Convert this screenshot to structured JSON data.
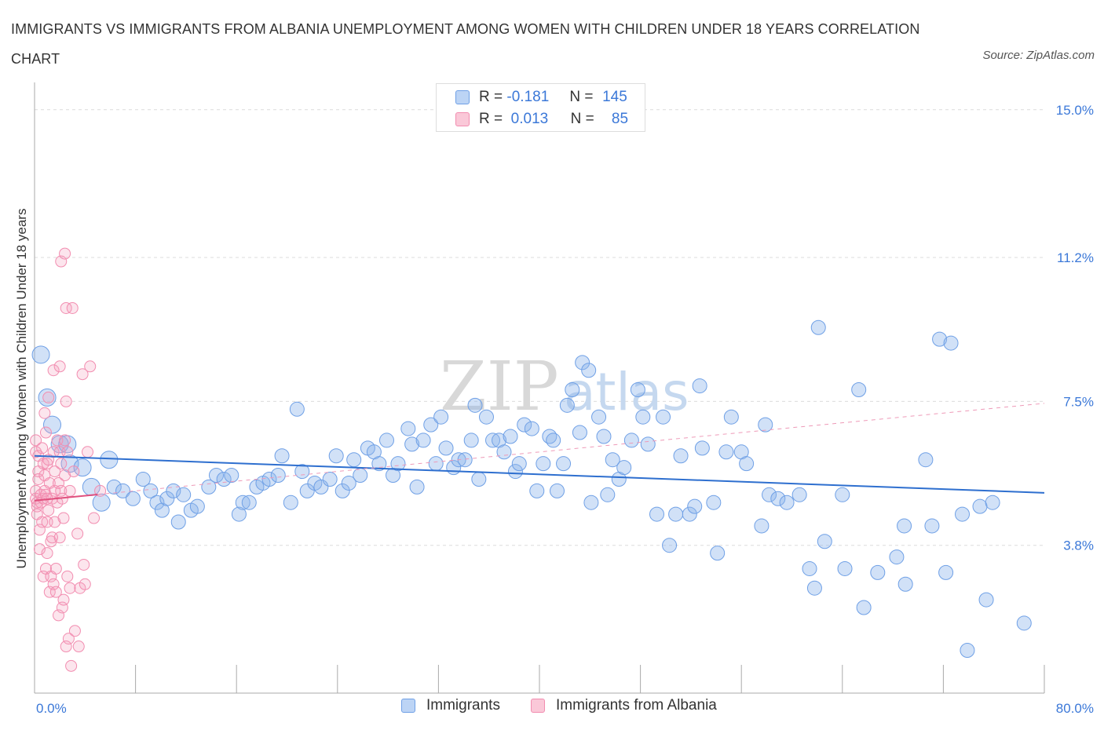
{
  "title": "IMMIGRANTS VS IMMIGRANTS FROM ALBANIA UNEMPLOYMENT AMONG WOMEN WITH CHILDREN UNDER 18 YEARS CORRELATION CHART",
  "source": "Source: ZipAtlas.com",
  "watermark": {
    "zip": "ZIP",
    "atlas": "atlas"
  },
  "legend": {
    "r_label": "R =",
    "n_label": "N =",
    "rows": [
      {
        "r": "-0.181",
        "n": "145"
      },
      {
        "r": "0.013",
        "n": "85"
      }
    ]
  },
  "chart_data": {
    "type": "scatter",
    "xlabel": "",
    "ylabel": "Unemployment Among Women with Children Under 18 years",
    "xlim": [
      0,
      80
    ],
    "ylim": [
      0,
      15.5
    ],
    "x_tick_labels": [
      "0.0%",
      "80.0%"
    ],
    "y_ticks": [
      3.8,
      7.5,
      11.2,
      15.0
    ],
    "y_tick_labels": [
      "3.8%",
      "7.5%",
      "11.2%",
      "15.0%"
    ],
    "grid": true,
    "legend_position": "top-center",
    "series": [
      {
        "name": "Immigrants",
        "color": "#6fa0e6",
        "line_color": "#2e6fcf",
        "trend": {
          "x": [
            0,
            80
          ],
          "y": [
            6.1,
            5.15
          ],
          "style": "solid"
        },
        "points": [
          [
            0.5,
            8.7
          ],
          [
            1.0,
            7.6
          ],
          [
            1.4,
            6.9
          ],
          [
            2.0,
            6.4
          ],
          [
            2.6,
            6.4
          ],
          [
            2.8,
            5.9
          ],
          [
            3.8,
            5.8
          ],
          [
            4.5,
            5.3
          ],
          [
            5.3,
            4.9
          ],
          [
            5.9,
            6.0
          ],
          [
            6.3,
            5.3
          ],
          [
            7.0,
            5.2
          ],
          [
            7.8,
            5.0
          ],
          [
            8.6,
            5.5
          ],
          [
            9.2,
            5.2
          ],
          [
            9.7,
            4.9
          ],
          [
            10.1,
            4.7
          ],
          [
            10.5,
            5.0
          ],
          [
            11.0,
            5.2
          ],
          [
            11.4,
            4.4
          ],
          [
            11.8,
            5.1
          ],
          [
            12.4,
            4.7
          ],
          [
            12.9,
            4.8
          ],
          [
            13.8,
            5.3
          ],
          [
            14.4,
            5.6
          ],
          [
            15.0,
            5.5
          ],
          [
            15.6,
            5.6
          ],
          [
            16.2,
            4.6
          ],
          [
            16.5,
            4.9
          ],
          [
            17.0,
            4.9
          ],
          [
            17.6,
            5.3
          ],
          [
            18.1,
            5.4
          ],
          [
            18.6,
            5.5
          ],
          [
            19.3,
            5.6
          ],
          [
            19.6,
            6.1
          ],
          [
            20.3,
            4.9
          ],
          [
            20.8,
            7.3
          ],
          [
            21.2,
            5.7
          ],
          [
            21.6,
            5.2
          ],
          [
            22.2,
            5.4
          ],
          [
            22.7,
            5.3
          ],
          [
            23.4,
            5.5
          ],
          [
            23.9,
            6.1
          ],
          [
            24.4,
            5.2
          ],
          [
            24.9,
            5.4
          ],
          [
            25.3,
            6.0
          ],
          [
            25.8,
            5.6
          ],
          [
            26.4,
            6.3
          ],
          [
            26.9,
            6.2
          ],
          [
            27.3,
            5.9
          ],
          [
            27.9,
            6.5
          ],
          [
            28.4,
            5.6
          ],
          [
            28.8,
            5.9
          ],
          [
            29.6,
            6.8
          ],
          [
            29.9,
            6.4
          ],
          [
            30.3,
            5.3
          ],
          [
            30.8,
            6.5
          ],
          [
            31.4,
            6.9
          ],
          [
            31.8,
            5.9
          ],
          [
            32.2,
            7.1
          ],
          [
            32.6,
            6.3
          ],
          [
            33.2,
            5.8
          ],
          [
            33.6,
            6.0
          ],
          [
            34.1,
            6.0
          ],
          [
            34.6,
            6.5
          ],
          [
            34.9,
            7.4
          ],
          [
            35.2,
            5.5
          ],
          [
            35.8,
            7.1
          ],
          [
            36.3,
            6.5
          ],
          [
            36.8,
            6.5
          ],
          [
            37.2,
            6.2
          ],
          [
            37.7,
            6.6
          ],
          [
            38.1,
            5.7
          ],
          [
            38.4,
            5.9
          ],
          [
            38.8,
            6.9
          ],
          [
            39.4,
            6.8
          ],
          [
            39.8,
            5.2
          ],
          [
            40.3,
            5.9
          ],
          [
            40.8,
            6.6
          ],
          [
            41.1,
            6.5
          ],
          [
            41.4,
            5.2
          ],
          [
            41.9,
            5.9
          ],
          [
            42.2,
            7.4
          ],
          [
            42.6,
            7.8
          ],
          [
            43.2,
            6.7
          ],
          [
            43.4,
            8.5
          ],
          [
            43.9,
            8.3
          ],
          [
            44.1,
            4.9
          ],
          [
            44.7,
            7.1
          ],
          [
            45.1,
            6.6
          ],
          [
            45.4,
            5.1
          ],
          [
            45.8,
            6.0
          ],
          [
            46.3,
            5.5
          ],
          [
            46.7,
            5.8
          ],
          [
            47.3,
            6.5
          ],
          [
            47.8,
            7.8
          ],
          [
            48.2,
            7.1
          ],
          [
            48.6,
            6.4
          ],
          [
            49.3,
            4.6
          ],
          [
            49.8,
            7.1
          ],
          [
            50.3,
            3.8
          ],
          [
            50.8,
            4.6
          ],
          [
            51.2,
            6.1
          ],
          [
            51.9,
            4.6
          ],
          [
            52.3,
            4.8
          ],
          [
            52.7,
            7.9
          ],
          [
            52.9,
            6.3
          ],
          [
            53.8,
            4.9
          ],
          [
            54.1,
            3.6
          ],
          [
            54.8,
            6.2
          ],
          [
            55.2,
            7.1
          ],
          [
            56.0,
            6.2
          ],
          [
            56.4,
            5.9
          ],
          [
            57.6,
            4.3
          ],
          [
            57.9,
            6.9
          ],
          [
            58.2,
            5.1
          ],
          [
            58.9,
            5.0
          ],
          [
            59.6,
            4.9
          ],
          [
            60.6,
            5.1
          ],
          [
            61.4,
            3.2
          ],
          [
            61.8,
            2.7
          ],
          [
            62.1,
            9.4
          ],
          [
            62.6,
            3.9
          ],
          [
            64.0,
            5.1
          ],
          [
            64.2,
            3.2
          ],
          [
            65.3,
            7.8
          ],
          [
            65.7,
            2.2
          ],
          [
            66.8,
            3.1
          ],
          [
            68.3,
            3.5
          ],
          [
            69.0,
            2.8
          ],
          [
            68.9,
            4.3
          ],
          [
            70.6,
            6.0
          ],
          [
            71.1,
            4.3
          ],
          [
            71.7,
            9.1
          ],
          [
            72.2,
            3.1
          ],
          [
            72.6,
            9.0
          ],
          [
            73.5,
            4.6
          ],
          [
            73.9,
            1.1
          ],
          [
            74.9,
            4.8
          ],
          [
            75.4,
            2.4
          ],
          [
            75.9,
            4.9
          ],
          [
            78.4,
            1.8
          ]
        ]
      },
      {
        "name": "Immigrants from Albania",
        "color": "#f28db0",
        "line_color": "#e0507e",
        "trend": {
          "x": [
            0,
            80
          ],
          "y": [
            4.95,
            7.45
          ],
          "solid_until_x": 5,
          "style": "dashed"
        },
        "points": [
          [
            0.1,
            6.5
          ],
          [
            0.1,
            6.2
          ],
          [
            0.1,
            5.2
          ],
          [
            0.1,
            5.0
          ],
          [
            0.2,
            4.9
          ],
          [
            0.2,
            4.8
          ],
          [
            0.2,
            4.6
          ],
          [
            0.3,
            6.1
          ],
          [
            0.3,
            5.7
          ],
          [
            0.3,
            5.5
          ],
          [
            0.4,
            4.2
          ],
          [
            0.4,
            3.7
          ],
          [
            0.5,
            5.1
          ],
          [
            0.5,
            4.9
          ],
          [
            0.6,
            6.3
          ],
          [
            0.6,
            4.4
          ],
          [
            0.7,
            5.9
          ],
          [
            0.7,
            5.0
          ],
          [
            0.7,
            3.0
          ],
          [
            0.8,
            7.2
          ],
          [
            0.8,
            5.6
          ],
          [
            0.8,
            5.2
          ],
          [
            0.9,
            6.7
          ],
          [
            0.9,
            5.1
          ],
          [
            0.9,
            3.2
          ],
          [
            1.0,
            5.9
          ],
          [
            1.0,
            5.0
          ],
          [
            1.0,
            4.4
          ],
          [
            1.0,
            3.6
          ],
          [
            1.1,
            7.6
          ],
          [
            1.1,
            6.0
          ],
          [
            1.1,
            4.7
          ],
          [
            1.2,
            5.4
          ],
          [
            1.2,
            2.6
          ],
          [
            1.3,
            3.9
          ],
          [
            1.3,
            3.0
          ],
          [
            1.4,
            5.0
          ],
          [
            1.4,
            4.0
          ],
          [
            1.5,
            6.2
          ],
          [
            1.5,
            8.3
          ],
          [
            1.5,
            2.8
          ],
          [
            1.6,
            5.7
          ],
          [
            1.6,
            5.2
          ],
          [
            1.6,
            4.4
          ],
          [
            1.7,
            3.2
          ],
          [
            1.7,
            2.6
          ],
          [
            1.8,
            6.5
          ],
          [
            1.8,
            4.9
          ],
          [
            1.9,
            5.4
          ],
          [
            1.9,
            2.0
          ],
          [
            2.0,
            8.4
          ],
          [
            2.0,
            6.2
          ],
          [
            2.0,
            4.0
          ],
          [
            2.1,
            11.1
          ],
          [
            2.1,
            5.9
          ],
          [
            2.1,
            5.2
          ],
          [
            2.2,
            5.0
          ],
          [
            2.2,
            2.2
          ],
          [
            2.3,
            4.5
          ],
          [
            2.3,
            2.4
          ],
          [
            2.4,
            11.3
          ],
          [
            2.4,
            6.5
          ],
          [
            2.4,
            5.6
          ],
          [
            2.5,
            7.5
          ],
          [
            2.5,
            9.9
          ],
          [
            2.5,
            1.2
          ],
          [
            2.6,
            6.2
          ],
          [
            2.6,
            3.0
          ],
          [
            2.7,
            1.4
          ],
          [
            2.8,
            5.2
          ],
          [
            2.8,
            2.7
          ],
          [
            2.9,
            0.7
          ],
          [
            3.0,
            9.9
          ],
          [
            3.1,
            5.7
          ],
          [
            3.2,
            1.6
          ],
          [
            3.4,
            4.1
          ],
          [
            3.5,
            1.2
          ],
          [
            3.6,
            2.7
          ],
          [
            3.8,
            8.2
          ],
          [
            3.9,
            3.3
          ],
          [
            4.0,
            2.8
          ],
          [
            4.2,
            6.2
          ],
          [
            4.4,
            8.4
          ],
          [
            4.7,
            4.5
          ],
          [
            5.2,
            5.2
          ]
        ]
      }
    ]
  },
  "bottom_legend": [
    "Immigrants",
    "Immigrants from Albania"
  ]
}
